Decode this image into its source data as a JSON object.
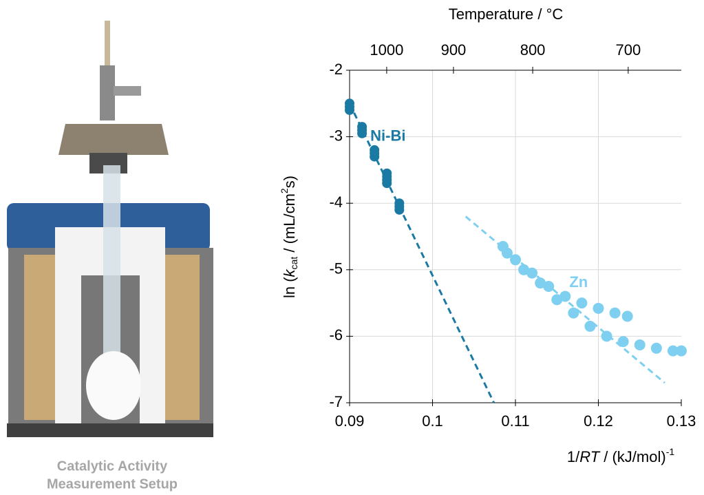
{
  "caption": [
    "Catalytic Activity",
    "Measurement Setup"
  ],
  "chart_data": {
    "type": "scatter",
    "x2label": "Temperature / °C",
    "ylabel": [
      "ln (",
      "k",
      "cat",
      " / (mL/cm",
      "2",
      "s)"
    ],
    "xlabel": [
      "1/",
      "RT",
      " / (kJ/mol)",
      "-1"
    ],
    "xlim": [
      0.09,
      0.13
    ],
    "xticks": [
      0.09,
      0.1,
      0.11,
      0.12,
      0.13
    ],
    "ylim": [
      -7,
      -2
    ],
    "yticks": [
      -7,
      -6,
      -5,
      -4,
      -3,
      -2
    ],
    "x2ticks": [
      1000,
      900,
      800,
      700
    ],
    "grid": true,
    "series": [
      {
        "name": "Ni-Bi",
        "color": "#1a7aa3",
        "x": [
          0.09,
          0.09,
          0.09,
          0.0915,
          0.0915,
          0.0915,
          0.093,
          0.093,
          0.093,
          0.0945,
          0.0945,
          0.0945,
          0.0945,
          0.096,
          0.096,
          0.096
        ],
        "values": [
          -2.5,
          -2.55,
          -2.6,
          -2.85,
          -2.9,
          -2.95,
          -3.2,
          -3.25,
          -3.3,
          -3.55,
          -3.6,
          -3.65,
          -3.7,
          -4.0,
          -4.05,
          -4.1
        ],
        "fit": {
          "x": [
            0.09,
            0.1074
          ],
          "values": [
            -2.5,
            -7
          ]
        }
      },
      {
        "name": "Zn",
        "color": "#7ecff0",
        "x": [
          0.1085,
          0.11,
          0.112,
          0.114,
          0.116,
          0.118,
          0.12,
          0.122,
          0.1235,
          0.109,
          0.111,
          0.113,
          0.115,
          0.117,
          0.119,
          0.121,
          0.123,
          0.125,
          0.127,
          0.129,
          0.13
        ],
        "values": [
          -4.65,
          -4.85,
          -5.05,
          -5.25,
          -5.4,
          -5.5,
          -5.58,
          -5.65,
          -5.7,
          -4.75,
          -5.0,
          -5.2,
          -5.45,
          -5.65,
          -5.85,
          -6.0,
          -6.08,
          -6.13,
          -6.18,
          -6.22,
          -6.22
        ],
        "fit": {
          "x": [
            0.104,
            0.128
          ],
          "values": [
            -4.2,
            -6.7
          ]
        }
      }
    ],
    "series_label_pos": [
      {
        "x": 0.0925,
        "y": -3.0
      },
      {
        "x": 0.1165,
        "y": -5.2
      }
    ]
  }
}
